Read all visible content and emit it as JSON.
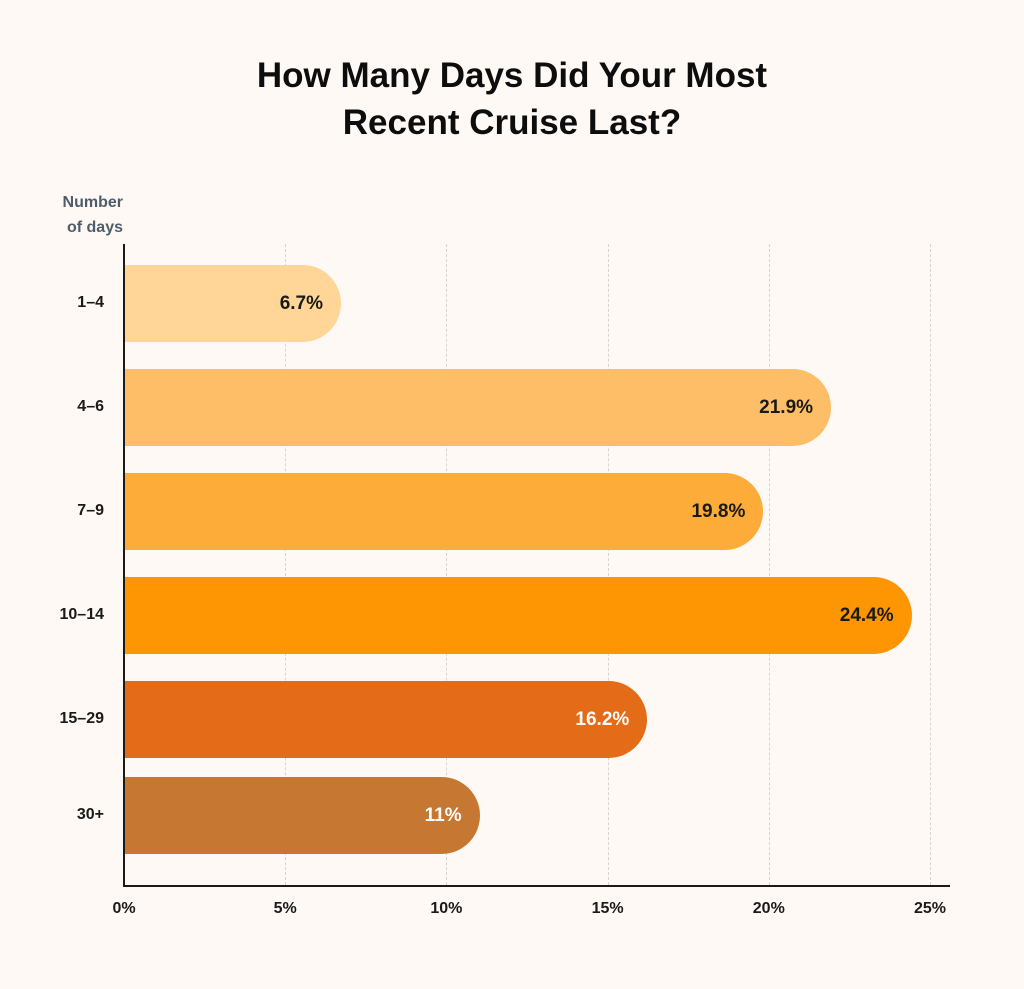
{
  "chart_data": {
    "type": "bar",
    "orientation": "horizontal",
    "title": "How Many Days Did Your Most Recent Cruise Last?",
    "title_lines": [
      "How Many Days Did Your Most",
      "Recent Cruise Last?"
    ],
    "ylabel": "Number of days",
    "ylabel_lines": [
      "Number",
      "of days"
    ],
    "xlabel": "",
    "categories": [
      "1–4",
      "4–6",
      "7–9",
      "10–14",
      "15–29",
      "30+"
    ],
    "values": [
      6.7,
      21.9,
      19.8,
      24.4,
      16.2,
      11
    ],
    "value_labels": [
      "6.7%",
      "21.9%",
      "19.8%",
      "24.4%",
      "16.2%",
      "11%"
    ],
    "bar_colors": [
      "#ffd598",
      "#fdbe67",
      "#fdab39",
      "#fe9503",
      "#e46b17",
      "#c67732"
    ],
    "label_colors": [
      "#1a1a14",
      "#1a1a14",
      "#1a1a14",
      "#1a1a14",
      "#ffffff",
      "#ffffff"
    ],
    "xticks": [
      "0%",
      "5%",
      "10%",
      "15%",
      "20%",
      "25%"
    ],
    "xtick_values": [
      0,
      5,
      10,
      15,
      20,
      25
    ],
    "xlim": [
      0,
      25
    ],
    "grid": "vertical dashed",
    "legend": null
  }
}
